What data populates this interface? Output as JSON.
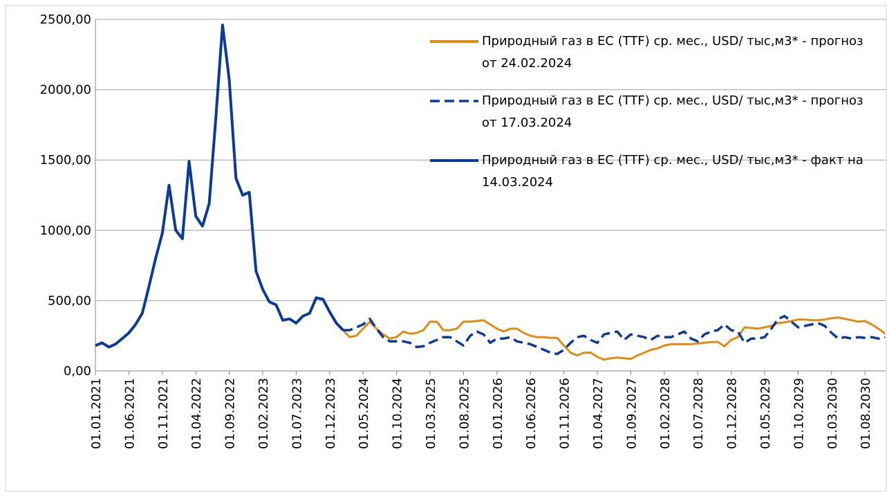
{
  "chart_data": {
    "type": "line",
    "categories": [
      "01.01.2021",
      null,
      null,
      null,
      null,
      "01.06.2021",
      null,
      null,
      null,
      null,
      "01.11.2021",
      null,
      null,
      null,
      null,
      "01.04.2022",
      null,
      null,
      null,
      null,
      "01.09.2022",
      null,
      null,
      null,
      null,
      "01.02.2023",
      null,
      null,
      null,
      null,
      "01.07.2023",
      null,
      null,
      null,
      null,
      "01.12.2023",
      null,
      null,
      null,
      null,
      "01.05.2024",
      null,
      null,
      null,
      null,
      "01.10.2024",
      null,
      null,
      null,
      null,
      "01.03.2025",
      null,
      null,
      null,
      null,
      "01.08.2025",
      null,
      null,
      null,
      null,
      "01.01.2026",
      null,
      null,
      null,
      null,
      "01.06.2026",
      null,
      null,
      null,
      null,
      "01.11.2026",
      null,
      null,
      null,
      null,
      "01.04.2027",
      null,
      null,
      null,
      null,
      "01.09.2027",
      null,
      null,
      null,
      null,
      "01.02.2028",
      null,
      null,
      null,
      null,
      "01.07.2028",
      null,
      null,
      null,
      null,
      "01.12.2028",
      null,
      null,
      null,
      null,
      "01.05.2029",
      null,
      null,
      null,
      null,
      "01.10.2029",
      null,
      null,
      null,
      null,
      "01.03.2030",
      null,
      null,
      null,
      null,
      "01.08.2030",
      null,
      null,
      null
    ],
    "series": [
      {
        "name": "Природный газ в ЕС (TTF) ср. мес., USD/ тыс,м3* - прогноз от 24.02.2024",
        "color": "#e38a11",
        "dashed": false,
        "values": [
          null,
          null,
          null,
          null,
          null,
          null,
          null,
          null,
          null,
          null,
          null,
          null,
          null,
          null,
          null,
          null,
          null,
          null,
          null,
          null,
          null,
          null,
          null,
          null,
          null,
          null,
          null,
          null,
          null,
          null,
          null,
          null,
          null,
          null,
          null,
          null,
          null,
          290,
          240,
          250,
          300,
          350,
          300,
          260,
          230,
          240,
          280,
          265,
          270,
          290,
          350,
          350,
          290,
          290,
          300,
          350,
          350,
          355,
          360,
          330,
          300,
          280,
          300,
          300,
          270,
          250,
          240,
          240,
          235,
          235,
          180,
          130,
          110,
          130,
          130,
          100,
          80,
          90,
          95,
          90,
          85,
          110,
          130,
          150,
          160,
          180,
          190,
          190,
          190,
          190,
          195,
          200,
          205,
          205,
          175,
          220,
          240,
          310,
          305,
          300,
          310,
          320,
          340,
          345,
          355,
          365,
          365,
          360,
          360,
          365,
          375,
          380,
          370,
          360,
          350,
          355,
          330,
          300,
          265
        ]
      },
      {
        "name": "Природный газ в ЕС (TTF) ср. мес., USD/ тыс,м3* - прогноз от 17.03.2024",
        "color": "#0a3a9a",
        "dashed": true,
        "values": [
          null,
          null,
          null,
          null,
          null,
          null,
          null,
          null,
          null,
          null,
          null,
          null,
          null,
          null,
          null,
          null,
          null,
          null,
          null,
          null,
          null,
          null,
          null,
          null,
          null,
          null,
          null,
          null,
          null,
          null,
          null,
          null,
          null,
          null,
          null,
          null,
          null,
          290,
          290,
          310,
          330,
          370,
          300,
          240,
          210,
          210,
          210,
          200,
          170,
          175,
          200,
          220,
          240,
          240,
          210,
          180,
          250,
          280,
          260,
          200,
          230,
          230,
          240,
          210,
          200,
          190,
          170,
          150,
          130,
          120,
          150,
          200,
          240,
          250,
          220,
          200,
          260,
          270,
          280,
          220,
          260,
          250,
          240,
          220,
          250,
          240,
          240,
          260,
          280,
          230,
          210,
          260,
          280,
          290,
          330,
          290,
          280,
          200,
          230,
          230,
          240,
          300,
          370,
          390,
          350,
          310,
          320,
          330,
          340,
          320,
          270,
          230,
          240,
          230,
          240,
          235,
          240,
          230,
          240
        ]
      },
      {
        "name": "Природный газ в ЕС (TTF) ср. мес., USD/ тыс,м3* - факт на 14.03.2024",
        "color": "#0a3a9a",
        "dashed": false,
        "values": [
          180,
          200,
          170,
          190,
          230,
          270,
          330,
          410,
          600,
          800,
          980,
          1320,
          1000,
          940,
          1490,
          1100,
          1030,
          1190,
          1800,
          2460,
          2070,
          1370,
          1250,
          1270,
          710,
          580,
          490,
          470,
          360,
          370,
          340,
          390,
          410,
          520,
          510,
          420,
          340,
          290,
          null,
          null,
          null,
          null,
          null,
          null,
          null,
          null,
          null,
          null,
          null,
          null,
          null,
          null,
          null,
          null,
          null,
          null,
          null,
          null,
          null,
          null,
          null,
          null,
          null,
          null,
          null,
          null,
          null,
          null,
          null,
          null,
          null,
          null,
          null,
          null,
          null,
          null,
          null,
          null,
          null,
          null,
          null,
          null,
          null,
          null,
          null,
          null,
          null,
          null,
          null,
          null,
          null,
          null,
          null,
          null,
          null,
          null,
          null,
          null,
          null,
          null,
          null,
          null,
          null,
          null,
          null,
          null,
          null,
          null,
          null,
          null,
          null,
          null,
          null,
          null,
          null,
          null,
          null,
          null,
          null
        ]
      }
    ],
    "ylim": [
      0,
      2500
    ],
    "yticks": [
      {
        "value": 0,
        "label": "0,00"
      },
      {
        "value": 500,
        "label": "500,00"
      },
      {
        "value": 1000,
        "label": "1000,00"
      },
      {
        "value": 1500,
        "label": "1500,00"
      },
      {
        "value": 2000,
        "label": "2000,00"
      },
      {
        "value": 2500,
        "label": "2500,00"
      }
    ],
    "grid": true,
    "legend": "top-right"
  }
}
